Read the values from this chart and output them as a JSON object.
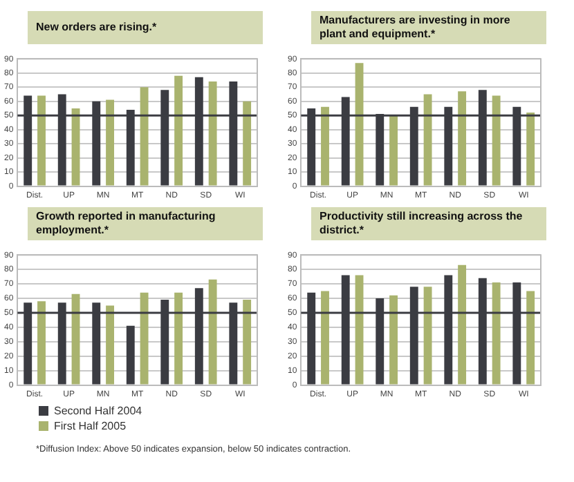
{
  "chart_data": [
    {
      "type": "bar",
      "title": "New orders are rising.*",
      "categories": [
        "Dist.",
        "UP",
        "MN",
        "MT",
        "ND",
        "SD",
        "WI"
      ],
      "series": [
        {
          "color": "#3b3c42",
          "values": [
            64,
            65,
            60,
            54,
            68,
            77,
            74
          ]
        },
        {
          "color": "#a9b36e",
          "values": [
            64,
            55,
            61,
            70,
            78,
            74,
            60
          ]
        }
      ],
      "ylim": [
        0,
        90
      ],
      "yticks": [
        0,
        10,
        20,
        30,
        40,
        50,
        60,
        70,
        80,
        90
      ],
      "grid": "y",
      "legend": false,
      "ref_lines": [
        {
          "axis": "y",
          "value": 50,
          "color": "#3b3c42"
        }
      ]
    },
    {
      "type": "bar",
      "title": "Manufacturers are investing in more plant and equipment.*",
      "categories": [
        "Dist.",
        "UP",
        "MN",
        "MT",
        "ND",
        "SD",
        "WI"
      ],
      "series": [
        {
          "color": "#3b3c42",
          "values": [
            55,
            63,
            51,
            56,
            56,
            68,
            56
          ]
        },
        {
          "color": "#a9b36e",
          "values": [
            56,
            87,
            50,
            65,
            67,
            64,
            52
          ]
        }
      ],
      "ylim": [
        0,
        90
      ],
      "yticks": [
        0,
        10,
        20,
        30,
        40,
        50,
        60,
        70,
        80,
        90
      ],
      "grid": "y",
      "legend": false,
      "ref_lines": [
        {
          "axis": "y",
          "value": 50,
          "color": "#3b3c42"
        }
      ]
    },
    {
      "type": "bar",
      "title": "Growth reported in manufacturing employment.*",
      "categories": [
        "Dist.",
        "UP",
        "MN",
        "MT",
        "ND",
        "SD",
        "WI"
      ],
      "series": [
        {
          "name": "Second Half 2004",
          "color": "#3b3c42",
          "values": [
            57,
            57,
            57,
            41,
            59,
            67,
            57
          ]
        },
        {
          "name": "First Half 2005",
          "color": "#a9b36e",
          "values": [
            58,
            63,
            55,
            64,
            64,
            73,
            59
          ]
        }
      ],
      "ylim": [
        0,
        90
      ],
      "yticks": [
        0,
        10,
        20,
        30,
        40,
        50,
        60,
        70,
        80,
        90
      ],
      "grid": "y",
      "legend": "bottom",
      "ref_lines": [
        {
          "axis": "y",
          "value": 50,
          "color": "#3b3c42"
        }
      ],
      "annotations": [
        "*Diffusion Index: Above 50 indicates expansion, below 50 indicates contraction."
      ]
    },
    {
      "type": "bar",
      "title": "Productivity still increasing across the district.*",
      "categories": [
        "Dist.",
        "UP",
        "MN",
        "MT",
        "ND",
        "SD",
        "WI"
      ],
      "series": [
        {
          "color": "#3b3c42",
          "values": [
            64,
            76,
            60,
            68,
            76,
            74,
            71
          ]
        },
        {
          "color": "#a9b36e",
          "values": [
            65,
            76,
            62,
            68,
            83,
            71,
            65
          ]
        }
      ],
      "ylim": [
        0,
        90
      ],
      "yticks": [
        0,
        10,
        20,
        30,
        40,
        50,
        60,
        70,
        80,
        90
      ],
      "grid": "y",
      "legend": false,
      "ref_lines": [
        {
          "axis": "y",
          "value": 50,
          "color": "#3b3c42"
        }
      ]
    }
  ]
}
